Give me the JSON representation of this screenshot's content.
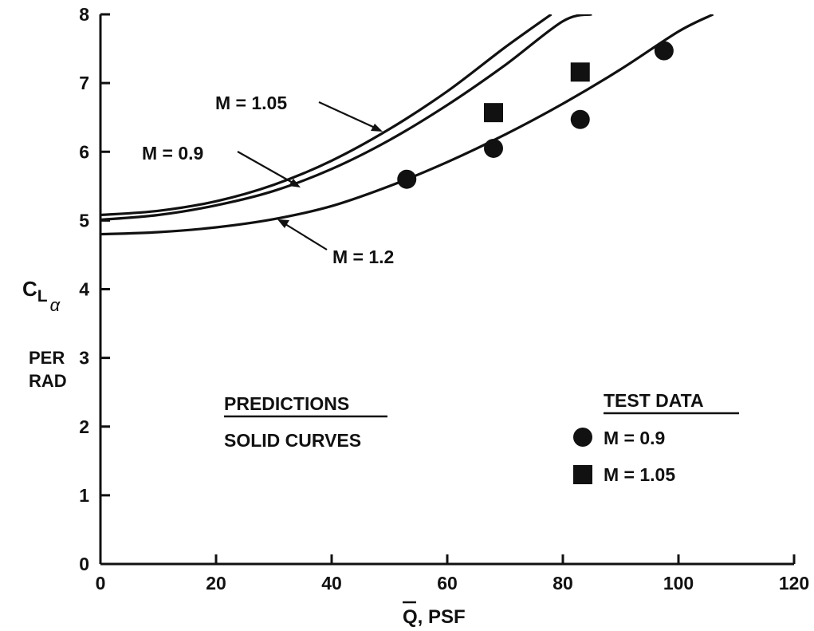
{
  "chart_data": {
    "type": "line",
    "xlabel_main": "Q",
    "xlabel_suffix": ", PSF",
    "ylabel_main": "C",
    "ylabel_sub1": "L",
    "ylabel_sub2": "α",
    "ylabel_line2": "PER",
    "ylabel_line3": "RAD",
    "xlim": [
      0,
      120
    ],
    "ylim": [
      0,
      8
    ],
    "x_ticks": [
      0,
      20,
      40,
      60,
      80,
      100,
      120
    ],
    "y_ticks": [
      0,
      1,
      2,
      3,
      4,
      5,
      6,
      7,
      8
    ],
    "x_tick_labels": [
      "0",
      "20",
      "40",
      "60",
      "80",
      "100",
      "120"
    ],
    "y_tick_labels": [
      "0",
      "1",
      "2",
      "3",
      "4",
      "5",
      "6",
      "7",
      "8"
    ],
    "grid": false,
    "series": [
      {
        "name": "M = 1.05",
        "kind": "curve",
        "x": [
          0,
          10,
          20,
          30,
          40,
          50,
          60,
          70,
          78
        ],
        "y": [
          5.08,
          5.14,
          5.28,
          5.52,
          5.87,
          6.33,
          6.88,
          7.52,
          8.0
        ]
      },
      {
        "name": "M = 0.9",
        "kind": "curve",
        "x": [
          0,
          10,
          20,
          30,
          40,
          50,
          60,
          70,
          80,
          85
        ],
        "y": [
          5.01,
          5.08,
          5.22,
          5.43,
          5.75,
          6.17,
          6.68,
          7.26,
          7.9,
          8.0
        ]
      },
      {
        "name": "M = 1.2",
        "kind": "curve",
        "x": [
          0,
          10,
          20,
          30,
          40,
          50,
          60,
          70,
          80,
          90,
          100,
          106
        ],
        "y": [
          4.8,
          4.83,
          4.9,
          5.02,
          5.21,
          5.5,
          5.85,
          6.25,
          6.7,
          7.2,
          7.75,
          8.0
        ]
      }
    ],
    "test_data": [
      {
        "name": "M = 0.9",
        "marker": "circle",
        "x": [
          53,
          68,
          83,
          97.5
        ],
        "y": [
          5.6,
          6.05,
          6.47,
          7.47
        ]
      },
      {
        "name": "M = 1.05",
        "marker": "square",
        "x": [
          68,
          83
        ],
        "y": [
          6.57,
          7.16
        ]
      }
    ],
    "annotations": {
      "predictions_title": "PREDICTIONS",
      "predictions_line2": "SOLID CURVES",
      "test_data_title": "TEST DATA",
      "legend_circle_label": "M  =  0.9",
      "legend_square_label": "M  =  1.05",
      "curve_label_105": "M  =  1.05",
      "curve_label_09": "M  =  0.9",
      "curve_label_12": "M  =  1.2"
    }
  }
}
